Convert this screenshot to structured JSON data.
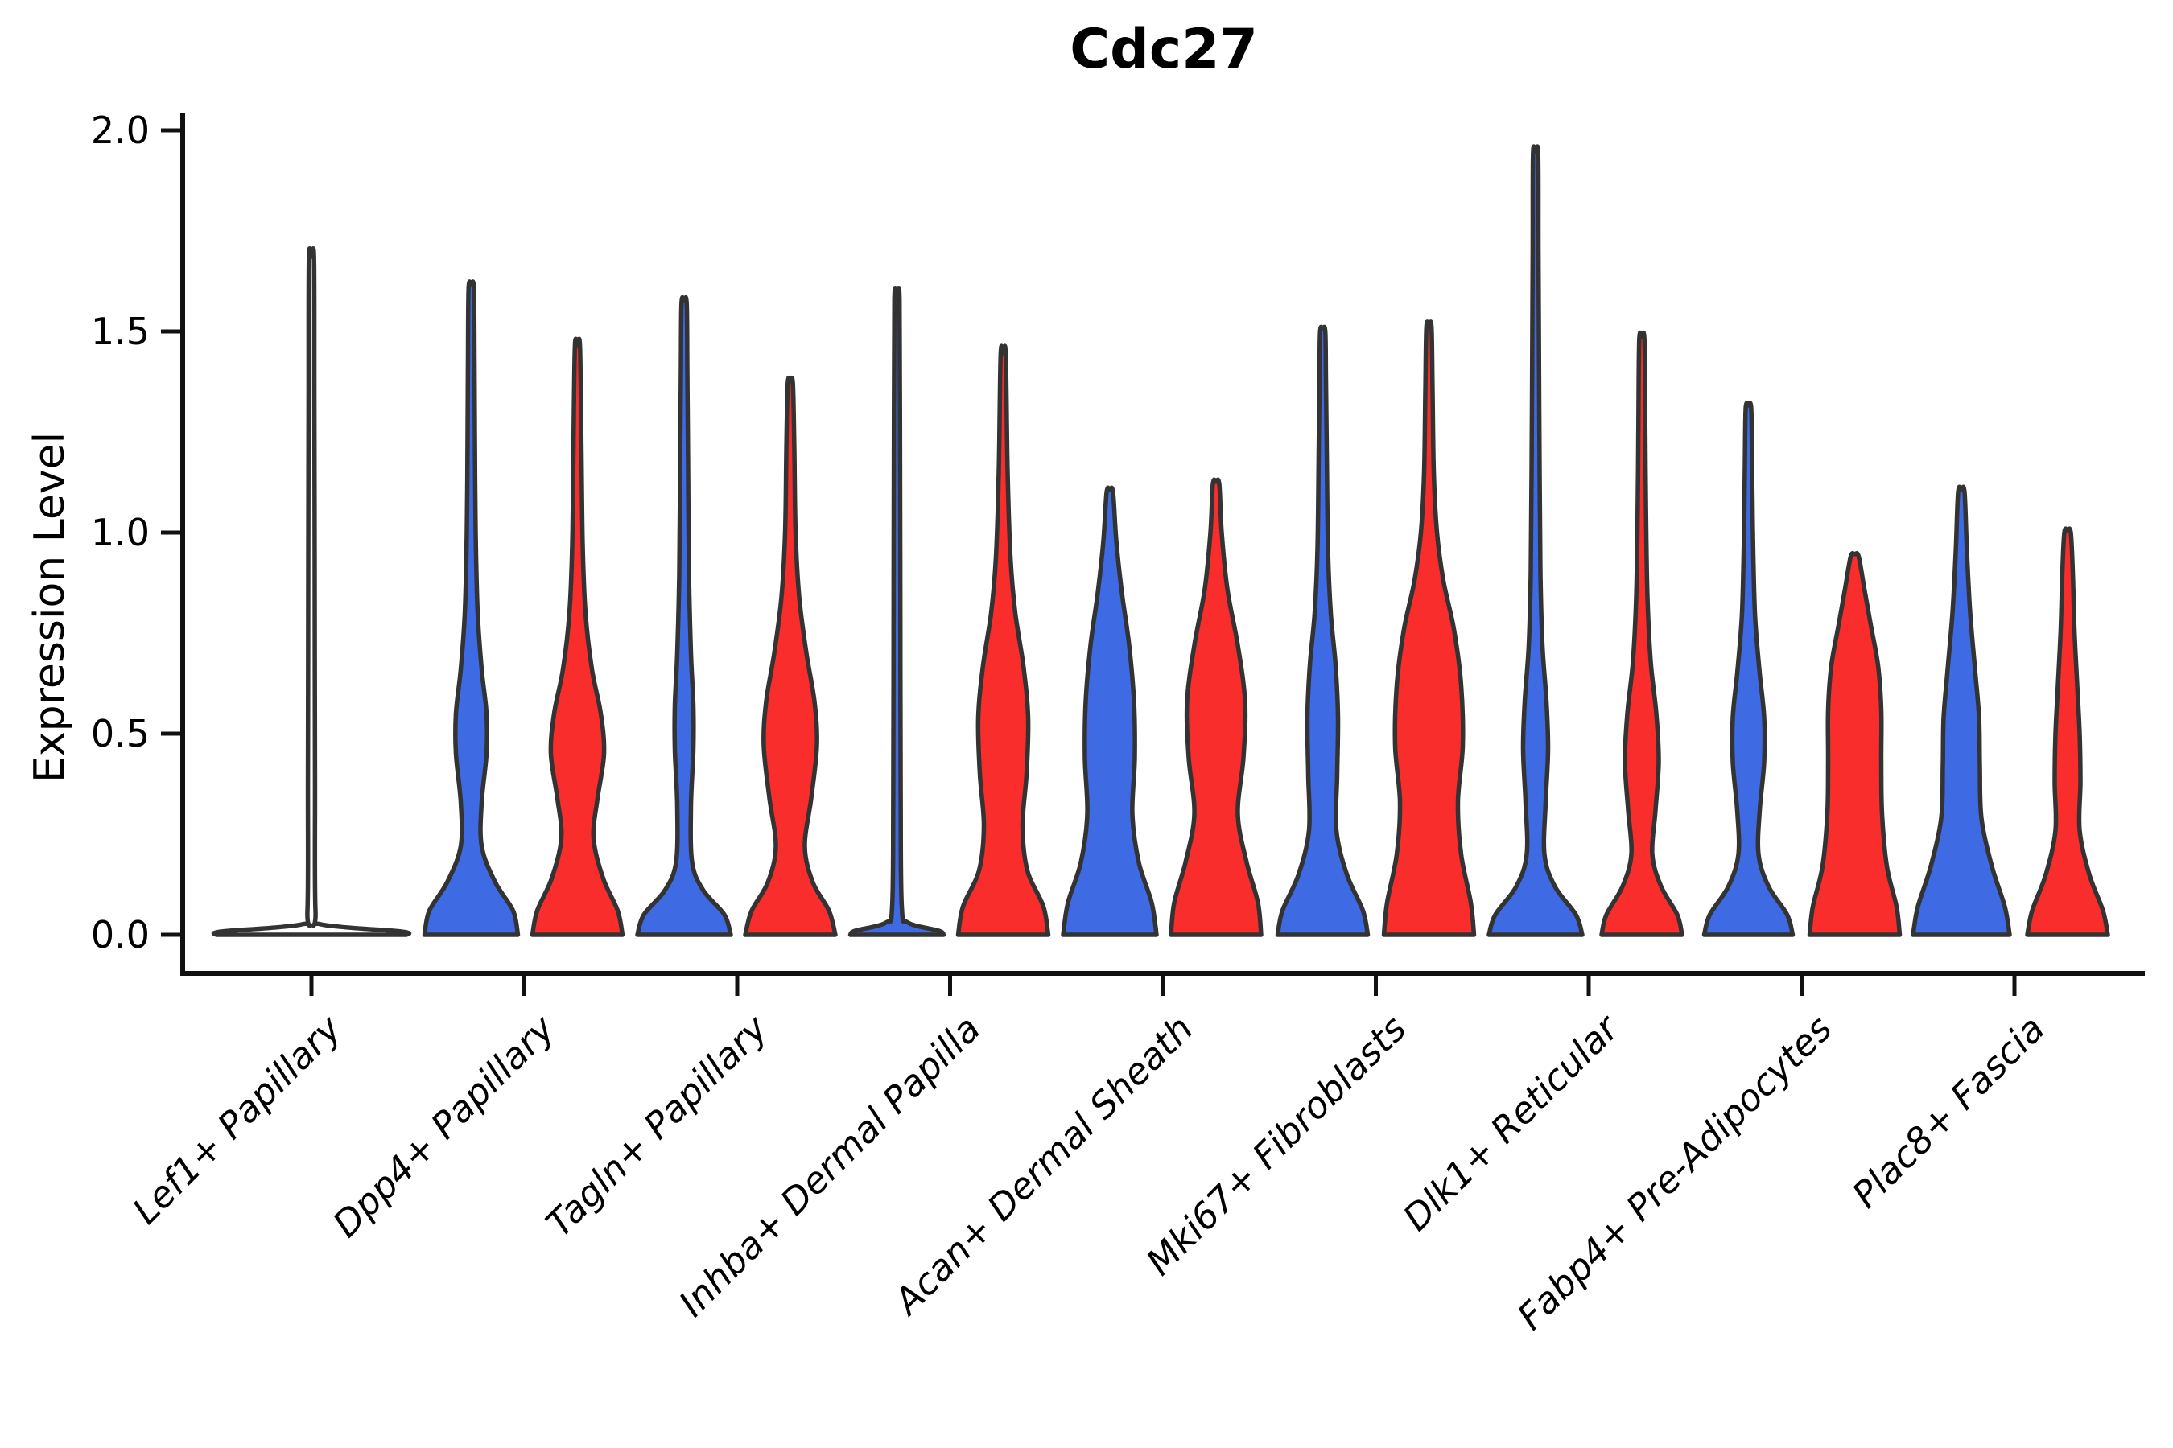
{
  "chart_data": {
    "type": "violin",
    "title": "Cdc27",
    "ylabel": "Expression Level",
    "xlabel": "",
    "ylim": [
      0,
      2.0
    ],
    "yticks": [
      "0.0",
      "0.5",
      "1.0",
      "1.5",
      "2.0"
    ],
    "ytick_values": [
      0.0,
      0.5,
      1.0,
      1.5,
      2.0
    ],
    "grid": false,
    "legend": "none",
    "colors": {
      "blue": "#3E6BE4",
      "red": "#FA2D2D",
      "outline": "#333333",
      "axis": "#111111"
    },
    "categories": [
      "Lef1+ Papillary",
      "Dpp4+ Papillary",
      "Tagln+ Papillary",
      "Inhba+ Dermal Papilla",
      "Acan+ Dermal Sheath",
      "Mki67+ Fibroblasts",
      "Dlk1+ Reticular",
      "Fabp4+ Pre-Adipocytes",
      "Plac8+ Fascia"
    ],
    "profile_note": "profile = [expression_value, kde_half_width_px]; paired violins per category: blue=left, red=right",
    "violins": [
      {
        "category": "Lef1+ Papillary",
        "parts": [
          {
            "group": "flat-with-outlier-spike",
            "side": "center",
            "color": "none",
            "max": 1.68,
            "profile": [
              [
                0,
                118
              ],
              [
                0.008,
                112
              ],
              [
                0.026,
                12
              ],
              [
                0.06,
                5
              ],
              [
                0.4,
                4.4
              ],
              [
                0.9,
                4
              ],
              [
                1.35,
                3.6
              ],
              [
                1.68,
                3.2
              ]
            ]
          }
        ]
      },
      {
        "category": "Dpp4+ Papillary",
        "parts": [
          {
            "group": "blue",
            "side": "left",
            "color": "blue",
            "max": 1.61,
            "profile": [
              [
                0,
                58
              ],
              [
                0.06,
                52
              ],
              [
                0.13,
                30
              ],
              [
                0.22,
                13
              ],
              [
                0.33,
                13
              ],
              [
                0.45,
                19
              ],
              [
                0.55,
                19
              ],
              [
                0.66,
                13
              ],
              [
                0.8,
                8
              ],
              [
                1.0,
                5.5
              ],
              [
                1.25,
                4.5
              ],
              [
                1.45,
                4
              ],
              [
                1.61,
                3.2
              ]
            ]
          },
          {
            "group": "red",
            "side": "right",
            "color": "red",
            "max": 1.46,
            "profile": [
              [
                0,
                56
              ],
              [
                0.06,
                50
              ],
              [
                0.14,
                32
              ],
              [
                0.24,
                20
              ],
              [
                0.34,
                25
              ],
              [
                0.45,
                33
              ],
              [
                0.55,
                29
              ],
              [
                0.66,
                18
              ],
              [
                0.8,
                10
              ],
              [
                0.97,
                6.5
              ],
              [
                1.2,
                5
              ],
              [
                1.46,
                3.2
              ]
            ]
          }
        ]
      },
      {
        "category": "Tagln+ Papillary",
        "parts": [
          {
            "group": "blue",
            "side": "left",
            "color": "blue",
            "max": 1.57,
            "profile": [
              [
                0,
                58
              ],
              [
                0.05,
                50
              ],
              [
                0.11,
                24
              ],
              [
                0.18,
                10
              ],
              [
                0.32,
                8.5
              ],
              [
                0.46,
                11.5
              ],
              [
                0.57,
                11.5
              ],
              [
                0.7,
                8.5
              ],
              [
                0.9,
                6
              ],
              [
                1.15,
                5
              ],
              [
                1.4,
                4
              ],
              [
                1.57,
                3.2
              ]
            ]
          },
          {
            "group": "red",
            "side": "right",
            "color": "red",
            "max": 1.37,
            "profile": [
              [
                0,
                56
              ],
              [
                0.06,
                48
              ],
              [
                0.13,
                28
              ],
              [
                0.22,
                18
              ],
              [
                0.34,
                26
              ],
              [
                0.47,
                33
              ],
              [
                0.58,
                30
              ],
              [
                0.7,
                20
              ],
              [
                0.84,
                11
              ],
              [
                1.0,
                6.5
              ],
              [
                1.2,
                5
              ],
              [
                1.37,
                3.2
              ]
            ]
          }
        ]
      },
      {
        "category": "Inhba+ Dermal Papilla",
        "parts": [
          {
            "group": "blue",
            "side": "left",
            "color": "blue",
            "max": 1.58,
            "profile": [
              [
                0,
                58
              ],
              [
                0.01,
                52
              ],
              [
                0.03,
                14
              ],
              [
                0.07,
                6
              ],
              [
                0.35,
                4.6
              ],
              [
                0.8,
                4.2
              ],
              [
                1.25,
                3.8
              ],
              [
                1.58,
                3.2
              ]
            ]
          },
          {
            "group": "red",
            "side": "right",
            "color": "red",
            "max": 1.44,
            "profile": [
              [
                0,
                56
              ],
              [
                0.07,
                50
              ],
              [
                0.16,
                30
              ],
              [
                0.27,
                24
              ],
              [
                0.4,
                29
              ],
              [
                0.54,
                31
              ],
              [
                0.67,
                25
              ],
              [
                0.8,
                15
              ],
              [
                0.94,
                9
              ],
              [
                1.15,
                5.5
              ],
              [
                1.44,
                3.2
              ]
            ]
          }
        ]
      },
      {
        "category": "Acan+ Dermal Sheath",
        "parts": [
          {
            "group": "blue",
            "side": "left",
            "color": "blue",
            "max": 1.1,
            "profile": [
              [
                0,
                58
              ],
              [
                0.08,
                52
              ],
              [
                0.18,
                36
              ],
              [
                0.3,
                28
              ],
              [
                0.44,
                31
              ],
              [
                0.58,
                30
              ],
              [
                0.72,
                24
              ],
              [
                0.85,
                15
              ],
              [
                0.98,
                8
              ],
              [
                1.1,
                4
              ]
            ]
          },
          {
            "group": "red",
            "side": "right",
            "color": "red",
            "max": 1.12,
            "profile": [
              [
                0,
                56
              ],
              [
                0.08,
                52
              ],
              [
                0.18,
                38
              ],
              [
                0.3,
                27
              ],
              [
                0.44,
                34
              ],
              [
                0.58,
                36
              ],
              [
                0.72,
                27
              ],
              [
                0.86,
                14
              ],
              [
                1.0,
                7
              ],
              [
                1.12,
                4
              ]
            ]
          }
        ]
      },
      {
        "category": "Mki67+ Fibroblasts",
        "parts": [
          {
            "group": "blue",
            "side": "left",
            "color": "blue",
            "max": 1.5,
            "profile": [
              [
                0,
                56
              ],
              [
                0.06,
                50
              ],
              [
                0.15,
                30
              ],
              [
                0.26,
                17
              ],
              [
                0.4,
                18
              ],
              [
                0.54,
                19
              ],
              [
                0.67,
                16
              ],
              [
                0.8,
                10
              ],
              [
                0.96,
                6.5
              ],
              [
                1.2,
                5
              ],
              [
                1.38,
                4
              ],
              [
                1.5,
                3.2
              ]
            ]
          },
          {
            "group": "red",
            "side": "right",
            "color": "red",
            "max": 1.51,
            "profile": [
              [
                0,
                56
              ],
              [
                0.08,
                52
              ],
              [
                0.2,
                40
              ],
              [
                0.33,
                36
              ],
              [
                0.47,
                42
              ],
              [
                0.62,
                40
              ],
              [
                0.76,
                31
              ],
              [
                0.88,
                18
              ],
              [
                1.0,
                10
              ],
              [
                1.15,
                6
              ],
              [
                1.35,
                4.5
              ],
              [
                1.51,
                3.2
              ]
            ]
          }
        ]
      },
      {
        "category": "Dlk1+ Reticular",
        "parts": [
          {
            "group": "blue",
            "side": "left",
            "color": "blue",
            "max": 1.94,
            "profile": [
              [
                0,
                58
              ],
              [
                0.05,
                50
              ],
              [
                0.12,
                24
              ],
              [
                0.2,
                11
              ],
              [
                0.33,
                12.5
              ],
              [
                0.46,
                15.5
              ],
              [
                0.58,
                13.5
              ],
              [
                0.72,
                8.5
              ],
              [
                0.9,
                6
              ],
              [
                1.15,
                5
              ],
              [
                1.45,
                4.2
              ],
              [
                1.7,
                3.6
              ],
              [
                1.94,
                3.2
              ]
            ]
          },
          {
            "group": "red",
            "side": "right",
            "color": "red",
            "max": 1.48,
            "profile": [
              [
                0,
                50
              ],
              [
                0.05,
                44
              ],
              [
                0.12,
                24
              ],
              [
                0.2,
                13
              ],
              [
                0.31,
                17
              ],
              [
                0.43,
                21
              ],
              [
                0.55,
                18
              ],
              [
                0.68,
                11
              ],
              [
                0.84,
                7
              ],
              [
                1.05,
                5.2
              ],
              [
                1.28,
                4.2
              ],
              [
                1.48,
                3.2
              ]
            ]
          }
        ]
      },
      {
        "category": "Fabp4+ Pre-Adipocytes",
        "parts": [
          {
            "group": "blue",
            "side": "left",
            "color": "blue",
            "max": 1.31,
            "profile": [
              [
                0,
                55
              ],
              [
                0.05,
                48
              ],
              [
                0.12,
                25
              ],
              [
                0.2,
                12.5
              ],
              [
                0.31,
                14
              ],
              [
                0.43,
                19.5
              ],
              [
                0.54,
                19.5
              ],
              [
                0.66,
                13.5
              ],
              [
                0.8,
                8
              ],
              [
                1.0,
                5.5
              ],
              [
                1.18,
                4.4
              ],
              [
                1.31,
                3.4
              ]
            ]
          },
          {
            "group": "red",
            "side": "right",
            "color": "red",
            "max": 0.94,
            "profile": [
              [
                0,
                56
              ],
              [
                0.07,
                52
              ],
              [
                0.17,
                40
              ],
              [
                0.3,
                34
              ],
              [
                0.43,
                33
              ],
              [
                0.56,
                33
              ],
              [
                0.67,
                29
              ],
              [
                0.77,
                20
              ],
              [
                0.86,
                12
              ],
              [
                0.94,
                5
              ]
            ]
          }
        ]
      },
      {
        "category": "Plac8+ Fascia",
        "parts": [
          {
            "group": "blue",
            "side": "left",
            "color": "blue",
            "max": 1.1,
            "profile": [
              [
                0,
                60
              ],
              [
                0.07,
                54
              ],
              [
                0.17,
                38
              ],
              [
                0.29,
                25
              ],
              [
                0.42,
                23
              ],
              [
                0.54,
                22
              ],
              [
                0.66,
                17
              ],
              [
                0.8,
                11
              ],
              [
                0.95,
                7
              ],
              [
                1.1,
                4
              ]
            ]
          },
          {
            "group": "red",
            "side": "right",
            "color": "red",
            "max": 1.0,
            "profile": [
              [
                0,
                50
              ],
              [
                0.06,
                44
              ],
              [
                0.15,
                27
              ],
              [
                0.26,
                15
              ],
              [
                0.38,
                16
              ],
              [
                0.5,
                15
              ],
              [
                0.62,
                12
              ],
              [
                0.76,
                8.5
              ],
              [
                0.9,
                6.5
              ],
              [
                1.0,
                4
              ]
            ]
          }
        ]
      }
    ]
  }
}
